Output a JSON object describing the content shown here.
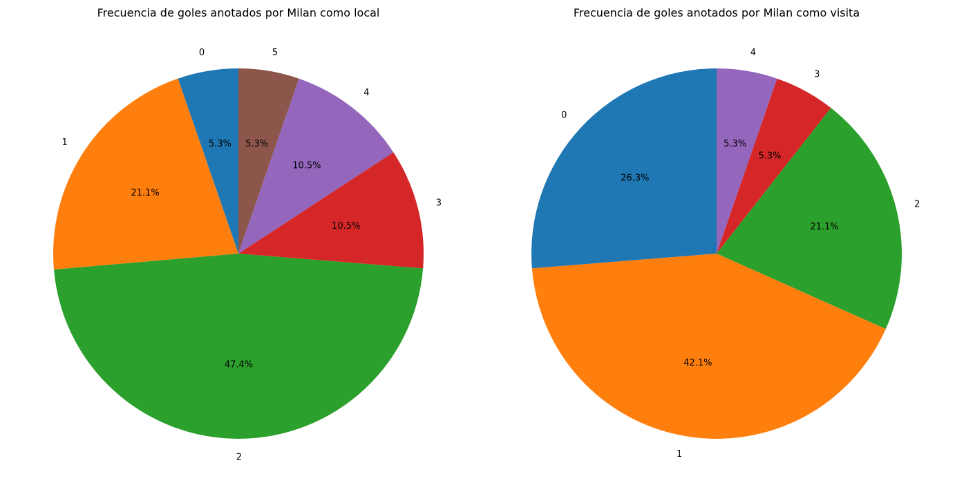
{
  "chart_data": [
    {
      "type": "pie",
      "title": "Frecuencia de goles anotados por Milan como local",
      "categories": [
        "0",
        "1",
        "2",
        "3",
        "4",
        "5"
      ],
      "values": [
        5.3,
        21.1,
        47.4,
        10.5,
        10.5,
        5.3
      ],
      "value_labels": [
        "5.3%",
        "21.1%",
        "47.4%",
        "10.5%",
        "10.5%",
        "5.3%"
      ],
      "colors": [
        "#1f77b4",
        "#ff7f0e",
        "#2ca02c",
        "#d62728",
        "#9467bd",
        "#8c564b"
      ],
      "start_angle_deg": 90,
      "direction": "counterclockwise"
    },
    {
      "type": "pie",
      "title": "Frecuencia de goles anotados por Milan como visita",
      "categories": [
        "0",
        "1",
        "2",
        "3",
        "4"
      ],
      "values": [
        26.3,
        42.1,
        21.1,
        5.3,
        5.3
      ],
      "value_labels": [
        "26.3%",
        "42.1%",
        "21.1%",
        "5.3%",
        "5.3%"
      ],
      "colors": [
        "#1f77b4",
        "#ff7f0e",
        "#2ca02c",
        "#d62728",
        "#9467bd"
      ],
      "start_angle_deg": 90,
      "direction": "counterclockwise"
    }
  ]
}
